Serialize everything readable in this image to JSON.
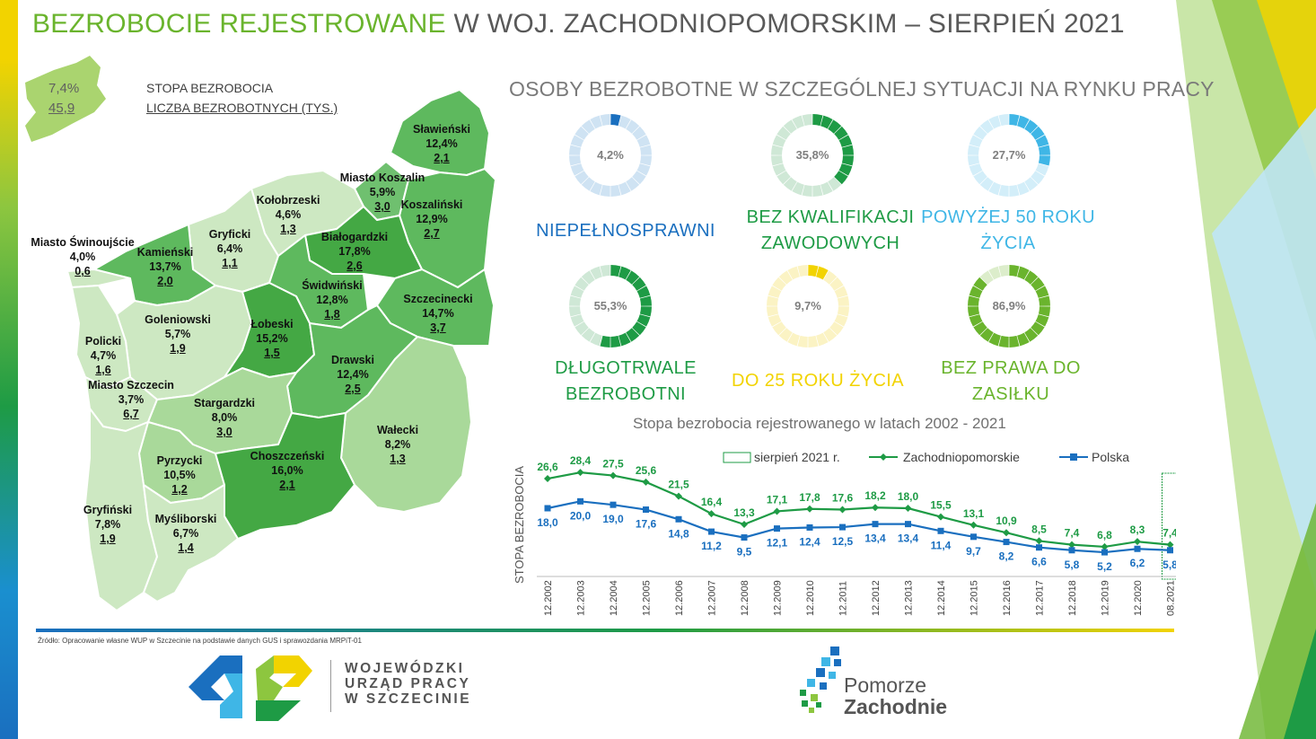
{
  "title": {
    "highlight": "BEZROBOCIE REJESTROWANE",
    "rest": " W WOJ. ZACHODNIOPOMORSKIM – SIERPIEŃ 2021"
  },
  "legend": {
    "rate": "7,4%",
    "count": "45,9",
    "rate_label": "STOPA BEZROBOCIA",
    "count_label": "LICZBA BEZROBOTNYCH (TYS.)"
  },
  "districts": [
    {
      "name": "Sławieński",
      "rate": "12,4%",
      "count": "2,1"
    },
    {
      "name": "Miasto Koszalin",
      "rate": "5,9%",
      "count": "3,0"
    },
    {
      "name": "Koszaliński",
      "rate": "12,9%",
      "count": "2,7"
    },
    {
      "name": "Kołobrzeski",
      "rate": "4,6%",
      "count": "1,3"
    },
    {
      "name": "Białogardzki",
      "rate": "17,8%",
      "count": "2,6"
    },
    {
      "name": "Gryficki",
      "rate": "6,4%",
      "count": "1,1"
    },
    {
      "name": "Kamieński",
      "rate": "13,7%",
      "count": "2,0"
    },
    {
      "name": "Miasto Świnoujście",
      "rate": "4,0%",
      "count": "0,6"
    },
    {
      "name": "Świdwiński",
      "rate": "12,8%",
      "count": "1,8"
    },
    {
      "name": "Szczecinecki",
      "rate": "14,7%",
      "count": "3,7"
    },
    {
      "name": "Goleniowski",
      "rate": "5,7%",
      "count": "1,9"
    },
    {
      "name": "Łobeski",
      "rate": "15,2%",
      "count": "1,5"
    },
    {
      "name": "Policki",
      "rate": "4,7%",
      "count": "1,6"
    },
    {
      "name": "Miasto Szczecin",
      "rate": "3,7%",
      "count": "6,7"
    },
    {
      "name": "Drawski",
      "rate": "12,4%",
      "count": "2,5"
    },
    {
      "name": "Stargardzki",
      "rate": "8,0%",
      "count": "3,0"
    },
    {
      "name": "Wałecki",
      "rate": "8,2%",
      "count": "1,3"
    },
    {
      "name": "Pyrzycki",
      "rate": "10,5%",
      "count": "1,2"
    },
    {
      "name": "Choszczeński",
      "rate": "16,0%",
      "count": "2,1"
    },
    {
      "name": "Gryfiński",
      "rate": "7,8%",
      "count": "1,9"
    },
    {
      "name": "Myśliborski",
      "rate": "6,7%",
      "count": "1,4"
    }
  ],
  "special": {
    "title": "OSOBY BEZROBOTNE W SZCZEGÓLNEJ SYTUACJI NA RYNKU PRACY",
    "items": [
      {
        "pct_label": "4,2%",
        "value": 4.2,
        "label_lines": [
          "NIEPEŁNOSPRAWNI"
        ],
        "color": "#1a6fbf",
        "light": "#cfe3f3"
      },
      {
        "pct_label": "35,8%",
        "value": 35.8,
        "label_lines": [
          "BEZ KWALIFIKACJI",
          "ZAWODOWYCH"
        ],
        "color": "#1e9b45",
        "light": "#cfe8d6"
      },
      {
        "pct_label": "27,7%",
        "value": 27.7,
        "label_lines": [
          "POWYŻEJ 50 ROKU",
          "ŻYCIA"
        ],
        "color": "#3fb6e6",
        "light": "#d3eef9"
      },
      {
        "pct_label": "55,3%",
        "value": 55.3,
        "label_lines": [
          "DŁUGOTRWALE",
          "BEZROBOTNI"
        ],
        "color": "#1e9b45",
        "light": "#cfe8d6"
      },
      {
        "pct_label": "9,7%",
        "value": 9.7,
        "label_lines": [
          "DO 25 ROKU ŻYCIA"
        ],
        "color": "#f2d300",
        "light": "#fbf3c4"
      },
      {
        "pct_label": "86,9%",
        "value": 86.9,
        "label_lines": [
          "BEZ PRAWA DO",
          "ZASIŁKU"
        ],
        "color": "#6ab42d",
        "light": "#dcedcb"
      }
    ]
  },
  "chart_data": {
    "type": "line",
    "title": "Stopa bezrobocia rejestrowanego w latach 2002 - 2021",
    "ylabel": "STOPA BEZROBOCIA",
    "categories": [
      "12.2002",
      "12.2003",
      "12.2004",
      "12.2005",
      "12.2006",
      "12.2007",
      "12.2008",
      "12.2009",
      "12.2010",
      "12.2011",
      "12.2012",
      "12.2013",
      "12.2014",
      "12.2015",
      "12.2016",
      "12.2017",
      "12.2018",
      "12.2019",
      "12.2020",
      "08.2021"
    ],
    "highlight_label": "sierpień 2021 r.",
    "series": [
      {
        "name": "Zachodniopomorskie",
        "color": "#1e9b45",
        "labels": [
          "26,6",
          "28,4",
          "27,5",
          "25,6",
          "21,5",
          "16,4",
          "13,3",
          "17,1",
          "17,8",
          "17,6",
          "18,2",
          "18,0",
          "15,5",
          "13,1",
          "10,9",
          "8,5",
          "7,4",
          "6,8",
          "8,3",
          "7,4"
        ],
        "values": [
          26.6,
          28.4,
          27.5,
          25.6,
          21.5,
          16.4,
          13.3,
          17.1,
          17.8,
          17.6,
          18.2,
          18.0,
          15.5,
          13.1,
          10.9,
          8.5,
          7.4,
          6.8,
          8.3,
          7.4
        ]
      },
      {
        "name": "Polska",
        "color": "#1a6fbf",
        "labels": [
          "18,0",
          "20,0",
          "19,0",
          "17,6",
          "14,8",
          "11,2",
          "9,5",
          "12,1",
          "12,4",
          "12,5",
          "13,4",
          "13,4",
          "11,4",
          "9,7",
          "8,2",
          "6,6",
          "5,8",
          "5,2",
          "6,2",
          "5,8"
        ],
        "values": [
          18.0,
          20.0,
          19.0,
          17.6,
          14.8,
          11.2,
          9.5,
          12.1,
          12.4,
          12.5,
          13.4,
          13.4,
          11.4,
          9.7,
          8.2,
          6.6,
          5.8,
          5.2,
          6.2,
          5.8
        ]
      }
    ]
  },
  "footer": {
    "source": "Źródło: Opracowanie własne WUP w Szczecinie na podstawie danych GUS i sprawozdania MRPiT-01",
    "wup_lines": [
      "WOJEWÓDZKI",
      "URZĄD PRACY",
      "W  SZCZECINIE"
    ],
    "pz_line1": "Pomorze",
    "pz_line2": "Zachodnie"
  }
}
